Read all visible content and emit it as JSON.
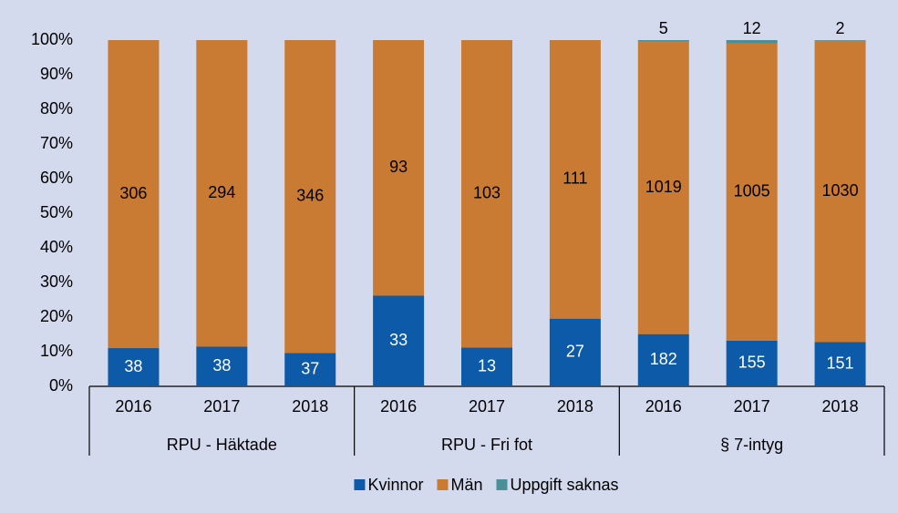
{
  "chart_data": {
    "type": "bar",
    "stacking": "percent",
    "categories": [
      "2016",
      "2017",
      "2018",
      "2016",
      "2017",
      "2018",
      "2016",
      "2017",
      "2018"
    ],
    "groups": [
      {
        "label": "RPU - Häktade",
        "size": 3
      },
      {
        "label": "RPU - Fri fot",
        "size": 3
      },
      {
        "label": "§ 7-intyg",
        "size": 3
      }
    ],
    "series": [
      {
        "name": "Kvinnor",
        "color": "#0d5aa8",
        "label_color": "#ffffff",
        "values": [
          38,
          38,
          37,
          33,
          13,
          27,
          182,
          155,
          151
        ]
      },
      {
        "name": "Män",
        "color": "#c97a33",
        "label_color": "#000000",
        "values": [
          306,
          294,
          346,
          93,
          103,
          111,
          1019,
          1005,
          1030
        ]
      },
      {
        "name": "Uppgift saknas",
        "color": "#4b8f99",
        "label_color": "#000000",
        "label_position": "above",
        "values": [
          null,
          null,
          null,
          null,
          null,
          null,
          5,
          12,
          2
        ]
      }
    ],
    "ylim": [
      0,
      100
    ],
    "yticks": [
      {
        "value": 0,
        "label": "0%"
      },
      {
        "value": 10,
        "label": "10%"
      },
      {
        "value": 20,
        "label": "20%"
      },
      {
        "value": 30,
        "label": "30%"
      },
      {
        "value": 40,
        "label": "40%"
      },
      {
        "value": 50,
        "label": "50%"
      },
      {
        "value": 60,
        "label": "60%"
      },
      {
        "value": 70,
        "label": "70%"
      },
      {
        "value": 80,
        "label": "80%"
      },
      {
        "value": 90,
        "label": "90%"
      },
      {
        "value": 100,
        "label": "100%"
      }
    ],
    "grid": false,
    "legend": "bottom"
  }
}
